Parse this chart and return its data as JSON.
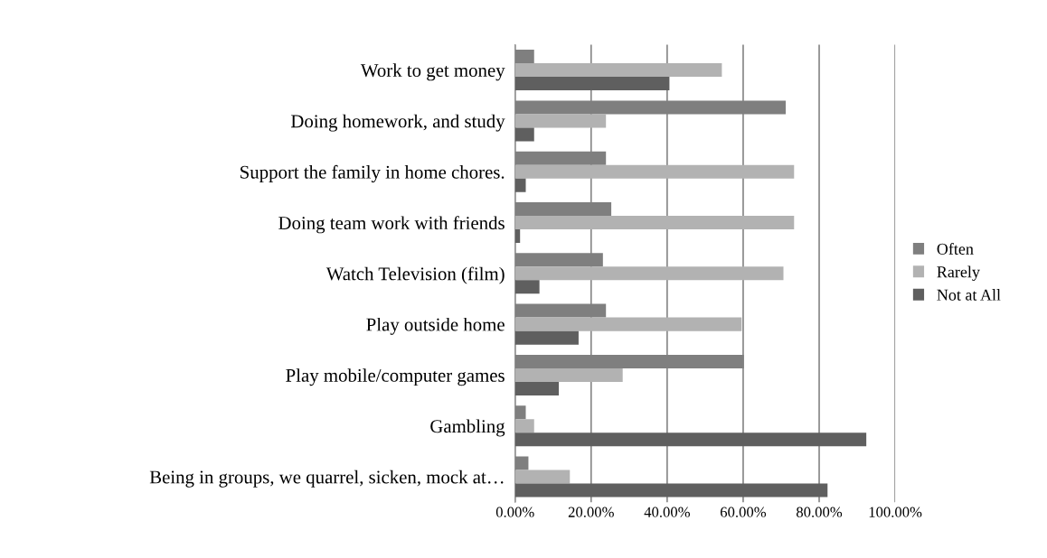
{
  "chart_data": {
    "type": "bar",
    "orientation": "horizontal",
    "categories": [
      "Work to get money",
      "Doing homework, and study",
      "Support the family in home chores.",
      "Doing team work with friends",
      "Watch Television (film)",
      "Play outside home",
      "Play mobile/computer games",
      "Gambling",
      "Being in groups, we quarrel, sicken, mock at…"
    ],
    "series": [
      {
        "name": "Often",
        "color": "#7f7f7f",
        "values": [
          5.0,
          71.2,
          23.9,
          25.3,
          23.1,
          23.9,
          60.2,
          2.8,
          3.5
        ]
      },
      {
        "name": "Rarely",
        "color": "#b2b2b2",
        "values": [
          54.4,
          23.9,
          73.4,
          73.4,
          70.6,
          59.6,
          28.3,
          5.0,
          14.4
        ]
      },
      {
        "name": "Not at All",
        "color": "#5f5f5f",
        "values": [
          40.6,
          5.0,
          2.8,
          1.3,
          6.4,
          16.7,
          11.5,
          92.4,
          82.2
        ]
      }
    ],
    "xlim": [
      0,
      100
    ],
    "xticks": [
      {
        "value": 0,
        "label": "0.00%"
      },
      {
        "value": 20,
        "label": "20.00%"
      },
      {
        "value": 40,
        "label": "40.00%"
      },
      {
        "value": 60,
        "label": "60.00%"
      },
      {
        "value": 80,
        "label": "80.00%"
      },
      {
        "value": 100,
        "label": "100.00%"
      }
    ],
    "grid": "x",
    "legend": "right"
  }
}
